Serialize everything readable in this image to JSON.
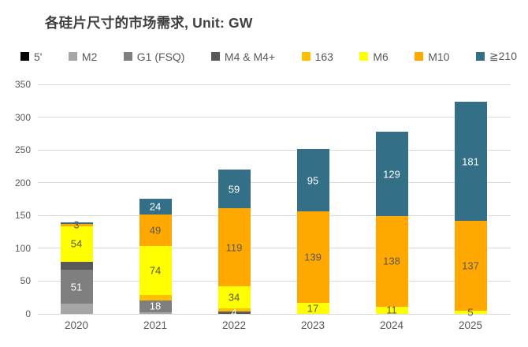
{
  "title": "各硅片尺寸的市场需求, Unit: GW",
  "chart_data": {
    "type": "bar",
    "stacked": true,
    "title": "各硅片尺寸的市场需求, Unit: GW",
    "unit": "GW",
    "legend_position": "top",
    "grid": true,
    "ylim": [
      0,
      350
    ],
    "ytick_step": 50,
    "yticks": [
      "0",
      "50",
      "100",
      "150",
      "200",
      "250",
      "300",
      "350"
    ],
    "categories": [
      "2020",
      "2021",
      "2022",
      "2023",
      "2024",
      "2025"
    ],
    "series": [
      {
        "name": "5'",
        "color": "#000000",
        "label_color": "#ffffff",
        "values": [
          0,
          0,
          0,
          0,
          0,
          0
        ],
        "labels": [
          "",
          "",
          "",
          "",
          "",
          ""
        ]
      },
      {
        "name": "M2",
        "color": "#a6a6a6",
        "label_color": "#ffffff",
        "values": [
          16,
          3,
          0,
          0,
          0,
          0
        ],
        "labels": [
          "",
          "",
          "",
          "",
          "",
          ""
        ]
      },
      {
        "name": "G1 (FSQ)",
        "color": "#7f7f7f",
        "label_color": "#ffffff",
        "values": [
          51,
          18,
          0,
          0,
          0,
          0
        ],
        "labels": [
          "51",
          "18",
          "",
          "",
          "",
          ""
        ]
      },
      {
        "name": "M4 & M4+",
        "color": "#595959",
        "label_color": "#ffffff",
        "values": [
          13,
          0,
          4,
          0,
          0,
          0
        ],
        "labels": [
          "",
          "",
          "4",
          "",
          "",
          ""
        ]
      },
      {
        "name": "163",
        "color": "#ffc000",
        "label_color": "#595959",
        "values": [
          0,
          8,
          4,
          0,
          0,
          0
        ],
        "labels": [
          "",
          "",
          "",
          "",
          "",
          ""
        ]
      },
      {
        "name": "M6",
        "color": "#ffff00",
        "label_color": "#595959",
        "values": [
          54,
          74,
          34,
          17,
          11,
          5
        ],
        "labels": [
          "54",
          "74",
          "34",
          "17",
          "11",
          "5"
        ]
      },
      {
        "name": "M10",
        "color": "#ffa800",
        "label_color": "#595959",
        "values": [
          3,
          49,
          119,
          139,
          138,
          137
        ],
        "labels": [
          "3",
          "49",
          "119",
          "139",
          "138",
          "137"
        ]
      },
      {
        "name": "≧210",
        "color": "#337088",
        "label_color": "#ffffff",
        "values": [
          2,
          24,
          59,
          95,
          129,
          181
        ],
        "labels": [
          "",
          "24",
          "59",
          "95",
          "129",
          "181"
        ]
      }
    ]
  },
  "style": {
    "gridline_color": "#d9d9d9",
    "axis_text_color": "#595959",
    "title_color": "#3f3f3f"
  }
}
